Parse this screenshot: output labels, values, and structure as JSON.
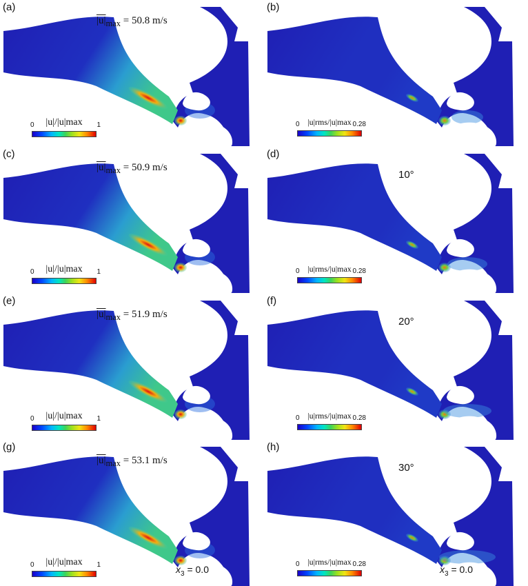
{
  "panels": [
    {
      "label": "(a)",
      "kind": "mean",
      "title_var": "|u|",
      "title_sub": "max",
      "title_value": "= 50.8 m/s",
      "cb_lo": "0",
      "cb_hi": "1"
    },
    {
      "label": "(b)",
      "kind": "rms",
      "angle": "",
      "cb_lo": "0",
      "cb_hi": "0.28"
    },
    {
      "label": "(c)",
      "kind": "mean",
      "title_var": "|u|",
      "title_sub": "max",
      "title_value": "= 50.9 m/s",
      "cb_lo": "0",
      "cb_hi": "1"
    },
    {
      "label": "(d)",
      "kind": "rms",
      "angle": "10°",
      "cb_lo": "0",
      "cb_hi": "0.28"
    },
    {
      "label": "(e)",
      "kind": "mean",
      "title_var": "|u|",
      "title_sub": "max",
      "title_value": "= 51.9 m/s",
      "cb_lo": "0",
      "cb_hi": "1"
    },
    {
      "label": "(f)",
      "kind": "rms",
      "angle": "20°",
      "cb_lo": "0",
      "cb_hi": "0.28"
    },
    {
      "label": "(g)",
      "kind": "mean",
      "title_var": "|u|",
      "title_sub": "max",
      "title_value": "= 53.1 m/s",
      "cb_lo": "0",
      "cb_hi": "1",
      "x3": "= 0.0"
    },
    {
      "label": "(h)",
      "kind": "rms",
      "angle": "30°",
      "cb_lo": "0",
      "cb_hi": "0.28",
      "x3": "= 0.0"
    }
  ],
  "colorbar_mean_title": "|u|/|u|max",
  "colorbar_rms_title": "|u|rms/|u|max",
  "colors": {
    "background": "#1f1fb4",
    "field_low": "#1428c8",
    "jet_high": "#e01010",
    "wall": "#ffffff"
  }
}
